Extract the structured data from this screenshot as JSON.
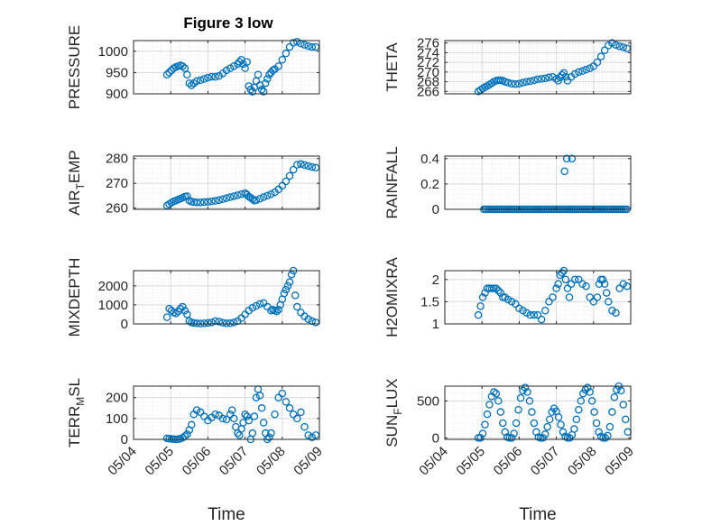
{
  "title": "Figure 3 low",
  "x_ticks": [
    "05/04",
    "05/05",
    "05/06",
    "05/07",
    "05/08",
    "05/09"
  ],
  "colors": {
    "series": "#0072BD",
    "axis": "#262626",
    "grid": "#d9d9d9",
    "minor_grid": "#ebebeb"
  },
  "chart_data": [
    {
      "type": "scatter",
      "marker": "open-circle",
      "grid": true,
      "xlim": [
        0,
        5
      ],
      "ylabel_parts": [
        "PRESSURE"
      ],
      "xlabel": "",
      "ylim": [
        900,
        1025
      ],
      "yticks": [
        900,
        950,
        1000
      ],
      "x": [
        0.9,
        0.96,
        1.02,
        1.08,
        1.14,
        1.2,
        1.26,
        1.32,
        1.38,
        1.44,
        1.5,
        1.56,
        1.62,
        1.7,
        1.8,
        1.9,
        2.0,
        2.1,
        2.2,
        2.3,
        2.4,
        2.5,
        2.6,
        2.7,
        2.8,
        2.85,
        2.9,
        2.95,
        3.0,
        3.05,
        3.1,
        3.15,
        3.2,
        3.25,
        3.3,
        3.35,
        3.4,
        3.45,
        3.5,
        3.55,
        3.6,
        3.65,
        3.7,
        3.75,
        3.8,
        3.9,
        4.0,
        4.1,
        4.2,
        4.3,
        4.4,
        4.5,
        4.6,
        4.7,
        4.8,
        4.9
      ],
      "y": [
        945,
        950,
        955,
        960,
        963,
        965,
        967,
        965,
        960,
        945,
        925,
        920,
        925,
        930,
        932,
        935,
        938,
        940,
        940,
        942,
        948,
        955,
        960,
        965,
        970,
        975,
        980,
        970,
        960,
        975,
        918,
        910,
        905,
        915,
        930,
        945,
        920,
        910,
        905,
        925,
        935,
        945,
        950,
        955,
        958,
        965,
        980,
        995,
        1010,
        1020,
        1022,
        1018,
        1015,
        1012,
        1010,
        1010
      ]
    },
    {
      "type": "scatter",
      "marker": "open-circle",
      "grid": true,
      "xlim": [
        0,
        5
      ],
      "ylabel_parts": [
        "THETA"
      ],
      "xlabel": "",
      "ylim": [
        265.5,
        276.5
      ],
      "yticks": [
        266,
        268,
        270,
        272,
        274,
        276
      ],
      "x": [
        0.9,
        0.96,
        1.02,
        1.08,
        1.14,
        1.2,
        1.26,
        1.32,
        1.38,
        1.44,
        1.5,
        1.56,
        1.62,
        1.7,
        1.8,
        1.9,
        2.0,
        2.1,
        2.2,
        2.3,
        2.4,
        2.5,
        2.6,
        2.7,
        2.8,
        2.9,
        3.0,
        3.05,
        3.1,
        3.15,
        3.2,
        3.25,
        3.3,
        3.4,
        3.5,
        3.6,
        3.7,
        3.8,
        3.9,
        4.0,
        4.1,
        4.2,
        4.3,
        4.4,
        4.5,
        4.6,
        4.7,
        4.8,
        4.9
      ],
      "y": [
        266,
        266.3,
        266.6,
        266.9,
        267.1,
        267.4,
        267.7,
        268,
        268.2,
        268.3,
        268.3,
        268.2,
        268,
        267.8,
        267.6,
        267.5,
        267.6,
        267.8,
        268,
        268.1,
        268.3,
        268.5,
        268.6,
        268.7,
        268.9,
        269,
        268.6,
        268.2,
        268.9,
        269.4,
        269.8,
        269,
        268.2,
        269,
        269.6,
        270,
        270.2,
        270.5,
        270.8,
        271.2,
        272,
        273.2,
        274.5,
        275.5,
        276,
        275.6,
        275.3,
        275.1,
        274.9
      ]
    },
    {
      "type": "scatter",
      "marker": "open-circle",
      "grid": true,
      "xlim": [
        0,
        5
      ],
      "ylabel_parts": [
        "AIR",
        "T",
        "EMP"
      ],
      "xlabel": "",
      "ylim": [
        259.5,
        281
      ],
      "yticks": [
        260,
        270,
        280
      ],
      "x": [
        0.9,
        0.96,
        1.02,
        1.08,
        1.14,
        1.2,
        1.26,
        1.32,
        1.38,
        1.44,
        1.5,
        1.56,
        1.62,
        1.7,
        1.8,
        1.9,
        2.0,
        2.1,
        2.2,
        2.3,
        2.4,
        2.5,
        2.6,
        2.7,
        2.8,
        2.9,
        3.0,
        3.05,
        3.1,
        3.15,
        3.2,
        3.25,
        3.3,
        3.4,
        3.5,
        3.6,
        3.7,
        3.8,
        3.9,
        4.0,
        4.1,
        4.2,
        4.3,
        4.4,
        4.5,
        4.6,
        4.7,
        4.8,
        4.9
      ],
      "y": [
        261,
        261.6,
        262.2,
        262.7,
        263,
        263.4,
        263.8,
        264.2,
        264.6,
        264.8,
        263,
        262.6,
        262.4,
        262.3,
        262.3,
        262.4,
        262.5,
        262.7,
        262.9,
        263.2,
        263.6,
        264,
        264.4,
        264.8,
        265.2,
        265.6,
        266,
        265.4,
        264.6,
        264.2,
        263.6,
        263,
        263.2,
        263.8,
        264.4,
        265,
        265.6,
        266.4,
        267.5,
        269,
        270.8,
        273,
        275.5,
        277.5,
        277.8,
        277.4,
        277,
        276.6,
        276.3
      ]
    },
    {
      "type": "scatter",
      "marker": "open-circle",
      "grid": true,
      "xlim": [
        0,
        5
      ],
      "ylabel_parts": [
        "RAINFALL"
      ],
      "xlabel": "",
      "ylim": [
        0,
        0.42
      ],
      "yticks": [
        0,
        0.2,
        0.4
      ],
      "ytick_labels": [
        "0",
        "0.2",
        "0.4"
      ],
      "x": [
        1.05,
        1.1,
        1.15,
        1.2,
        1.25,
        1.3,
        1.35,
        1.4,
        1.45,
        1.5,
        1.55,
        1.6,
        1.65,
        1.7,
        1.75,
        1.8,
        1.85,
        1.9,
        1.95,
        2.0,
        2.05,
        2.1,
        2.15,
        2.2,
        2.25,
        2.3,
        2.35,
        2.4,
        2.45,
        2.5,
        2.55,
        2.6,
        2.65,
        2.7,
        2.75,
        2.8,
        2.85,
        2.9,
        2.95,
        3.0,
        3.05,
        3.1,
        3.15,
        3.2,
        3.25,
        3.3,
        3.35,
        3.4,
        3.45,
        3.5,
        3.55,
        3.6,
        3.65,
        3.7,
        3.75,
        3.8,
        3.85,
        3.9,
        3.95,
        4.0,
        4.05,
        4.1,
        4.15,
        4.2,
        4.25,
        4.3,
        4.35,
        4.4,
        4.45,
        4.5,
        4.55,
        4.6,
        4.65,
        4.7,
        4.75,
        4.8,
        4.85,
        4.9,
        3.22,
        3.28,
        3.42
      ],
      "y": [
        0,
        0,
        0,
        0,
        0,
        0,
        0,
        0,
        0,
        0,
        0,
        0,
        0,
        0,
        0,
        0,
        0,
        0,
        0,
        0,
        0,
        0,
        0,
        0,
        0,
        0,
        0,
        0,
        0,
        0,
        0,
        0,
        0,
        0,
        0,
        0,
        0,
        0,
        0,
        0,
        0,
        0,
        0,
        0,
        0,
        0,
        0,
        0,
        0,
        0,
        0,
        0,
        0,
        0,
        0,
        0,
        0,
        0,
        0,
        0,
        0,
        0,
        0,
        0,
        0,
        0,
        0,
        0,
        0,
        0,
        0,
        0,
        0,
        0,
        0,
        0,
        0,
        0,
        0.3,
        0.4,
        0.4
      ]
    },
    {
      "type": "scatter",
      "marker": "open-circle",
      "grid": true,
      "xlim": [
        0,
        5
      ],
      "ylabel_parts": [
        "MIXDEPTH"
      ],
      "xlabel": "",
      "ylim": [
        0,
        2800
      ],
      "yticks": [
        0,
        1000,
        2000
      ],
      "x": [
        0.9,
        0.96,
        1.02,
        1.08,
        1.14,
        1.2,
        1.26,
        1.32,
        1.38,
        1.44,
        1.5,
        1.56,
        1.62,
        1.7,
        1.8,
        1.9,
        2.0,
        2.1,
        2.2,
        2.3,
        2.4,
        2.5,
        2.6,
        2.7,
        2.8,
        2.9,
        3.0,
        3.1,
        3.2,
        3.3,
        3.4,
        3.5,
        3.6,
        3.7,
        3.75,
        3.8,
        3.85,
        3.9,
        3.95,
        4.0,
        4.05,
        4.1,
        4.15,
        4.2,
        4.25,
        4.3,
        4.35,
        4.4,
        4.5,
        4.6,
        4.7,
        4.8,
        4.9
      ],
      "y": [
        350,
        800,
        700,
        600,
        550,
        650,
        800,
        900,
        700,
        500,
        150,
        80,
        50,
        30,
        20,
        30,
        50,
        80,
        150,
        120,
        60,
        30,
        40,
        80,
        150,
        300,
        500,
        700,
        850,
        950,
        1050,
        1100,
        900,
        700,
        750,
        700,
        650,
        750,
        1000,
        1300,
        1600,
        1800,
        2000,
        2200,
        2600,
        2800,
        1500,
        900,
        600,
        400,
        250,
        150,
        80
      ]
    },
    {
      "type": "scatter",
      "marker": "open-circle",
      "grid": true,
      "xlim": [
        0,
        5
      ],
      "ylabel_parts": [
        "H2OMIXRA"
      ],
      "xlabel": "",
      "ylim": [
        1,
        2.2
      ],
      "yticks": [
        1,
        1.5,
        2
      ],
      "x": [
        0.9,
        0.96,
        1.02,
        1.08,
        1.14,
        1.2,
        1.26,
        1.32,
        1.38,
        1.44,
        1.5,
        1.56,
        1.62,
        1.7,
        1.8,
        1.9,
        2.0,
        2.1,
        2.2,
        2.3,
        2.4,
        2.5,
        2.6,
        2.7,
        2.8,
        2.9,
        3.0,
        3.05,
        3.1,
        3.15,
        3.2,
        3.25,
        3.3,
        3.35,
        3.4,
        3.5,
        3.6,
        3.7,
        3.8,
        3.9,
        4.0,
        4.1,
        4.15,
        4.2,
        4.25,
        4.3,
        4.35,
        4.4,
        4.5,
        4.6,
        4.7,
        4.8,
        4.9
      ],
      "y": [
        1.2,
        1.4,
        1.6,
        1.7,
        1.8,
        1.8,
        1.8,
        1.8,
        1.8,
        1.75,
        1.7,
        1.6,
        1.6,
        1.55,
        1.5,
        1.45,
        1.35,
        1.3,
        1.25,
        1.2,
        1.2,
        1.2,
        1.1,
        1.3,
        1.5,
        1.6,
        1.8,
        1.9,
        2.1,
        2.15,
        2.2,
        2.0,
        1.8,
        1.6,
        1.9,
        2.0,
        2.0,
        1.9,
        1.85,
        1.6,
        1.5,
        1.6,
        1.9,
        2.0,
        2.0,
        1.9,
        1.7,
        1.5,
        1.3,
        1.25,
        1.8,
        1.9,
        1.85
      ]
    },
    {
      "type": "scatter",
      "marker": "open-circle",
      "grid": true,
      "xlim": [
        0,
        5
      ],
      "ylabel_parts": [
        "TERR",
        "M",
        "SL"
      ],
      "xlabel": "Time",
      "ylim": [
        0,
        255
      ],
      "yticks": [
        0,
        100,
        200
      ],
      "x": [
        0.9,
        0.96,
        1.02,
        1.08,
        1.14,
        1.2,
        1.26,
        1.32,
        1.38,
        1.44,
        1.5,
        1.56,
        1.62,
        1.7,
        1.8,
        1.9,
        2.0,
        2.1,
        2.2,
        2.3,
        2.4,
        2.5,
        2.6,
        2.65,
        2.7,
        2.75,
        2.8,
        2.85,
        2.9,
        2.95,
        3.0,
        3.05,
        3.1,
        3.15,
        3.2,
        3.25,
        3.3,
        3.35,
        3.4,
        3.45,
        3.5,
        3.55,
        3.6,
        3.65,
        3.7,
        3.8,
        3.9,
        4.0,
        4.1,
        4.2,
        4.3,
        4.4,
        4.5,
        4.6,
        4.7,
        4.8,
        4.9
      ],
      "y": [
        5,
        3,
        2,
        1,
        0,
        1,
        3,
        8,
        15,
        25,
        45,
        70,
        120,
        140,
        130,
        110,
        90,
        105,
        120,
        115,
        100,
        95,
        120,
        140,
        100,
        60,
        30,
        20,
        50,
        80,
        120,
        110,
        90,
        0,
        30,
        110,
        200,
        240,
        210,
        150,
        80,
        30,
        0,
        10,
        30,
        120,
        200,
        220,
        180,
        150,
        120,
        100,
        130,
        60,
        20,
        10,
        20
      ]
    },
    {
      "type": "scatter",
      "marker": "open-circle",
      "grid": true,
      "xlim": [
        0,
        5
      ],
      "ylabel_parts": [
        "SUN",
        "F",
        "LUX"
      ],
      "xlabel": "Time",
      "ylim": [
        -20,
        700
      ],
      "yticks": [
        0,
        500
      ],
      "x": [
        0.9,
        0.96,
        1.02,
        1.08,
        1.14,
        1.2,
        1.26,
        1.32,
        1.38,
        1.44,
        1.5,
        1.56,
        1.62,
        1.68,
        1.74,
        1.8,
        1.86,
        1.92,
        1.98,
        2.04,
        2.1,
        2.16,
        2.22,
        2.28,
        2.34,
        2.4,
        2.46,
        2.52,
        2.58,
        2.64,
        2.7,
        2.76,
        2.82,
        2.88,
        2.94,
        3.0,
        3.06,
        3.12,
        3.18,
        3.24,
        3.3,
        3.36,
        3.42,
        3.48,
        3.54,
        3.6,
        3.66,
        3.72,
        3.78,
        3.84,
        3.9,
        3.96,
        4.02,
        4.08,
        4.14,
        4.2,
        4.26,
        4.32,
        4.38,
        4.44,
        4.5,
        4.56,
        4.62,
        4.68,
        4.74,
        4.8,
        4.86,
        4.92
      ],
      "y": [
        0,
        0,
        60,
        180,
        320,
        450,
        560,
        620,
        600,
        500,
        350,
        200,
        80,
        10,
        0,
        0,
        60,
        200,
        380,
        540,
        640,
        680,
        620,
        500,
        350,
        200,
        80,
        10,
        0,
        0,
        50,
        150,
        250,
        350,
        400,
        360,
        280,
        180,
        80,
        20,
        0,
        0,
        40,
        120,
        250,
        380,
        500,
        600,
        650,
        680,
        620,
        500,
        350,
        200,
        80,
        20,
        0,
        0,
        30,
        150,
        350,
        550,
        650,
        700,
        640,
        450,
        250,
        80
      ]
    }
  ]
}
